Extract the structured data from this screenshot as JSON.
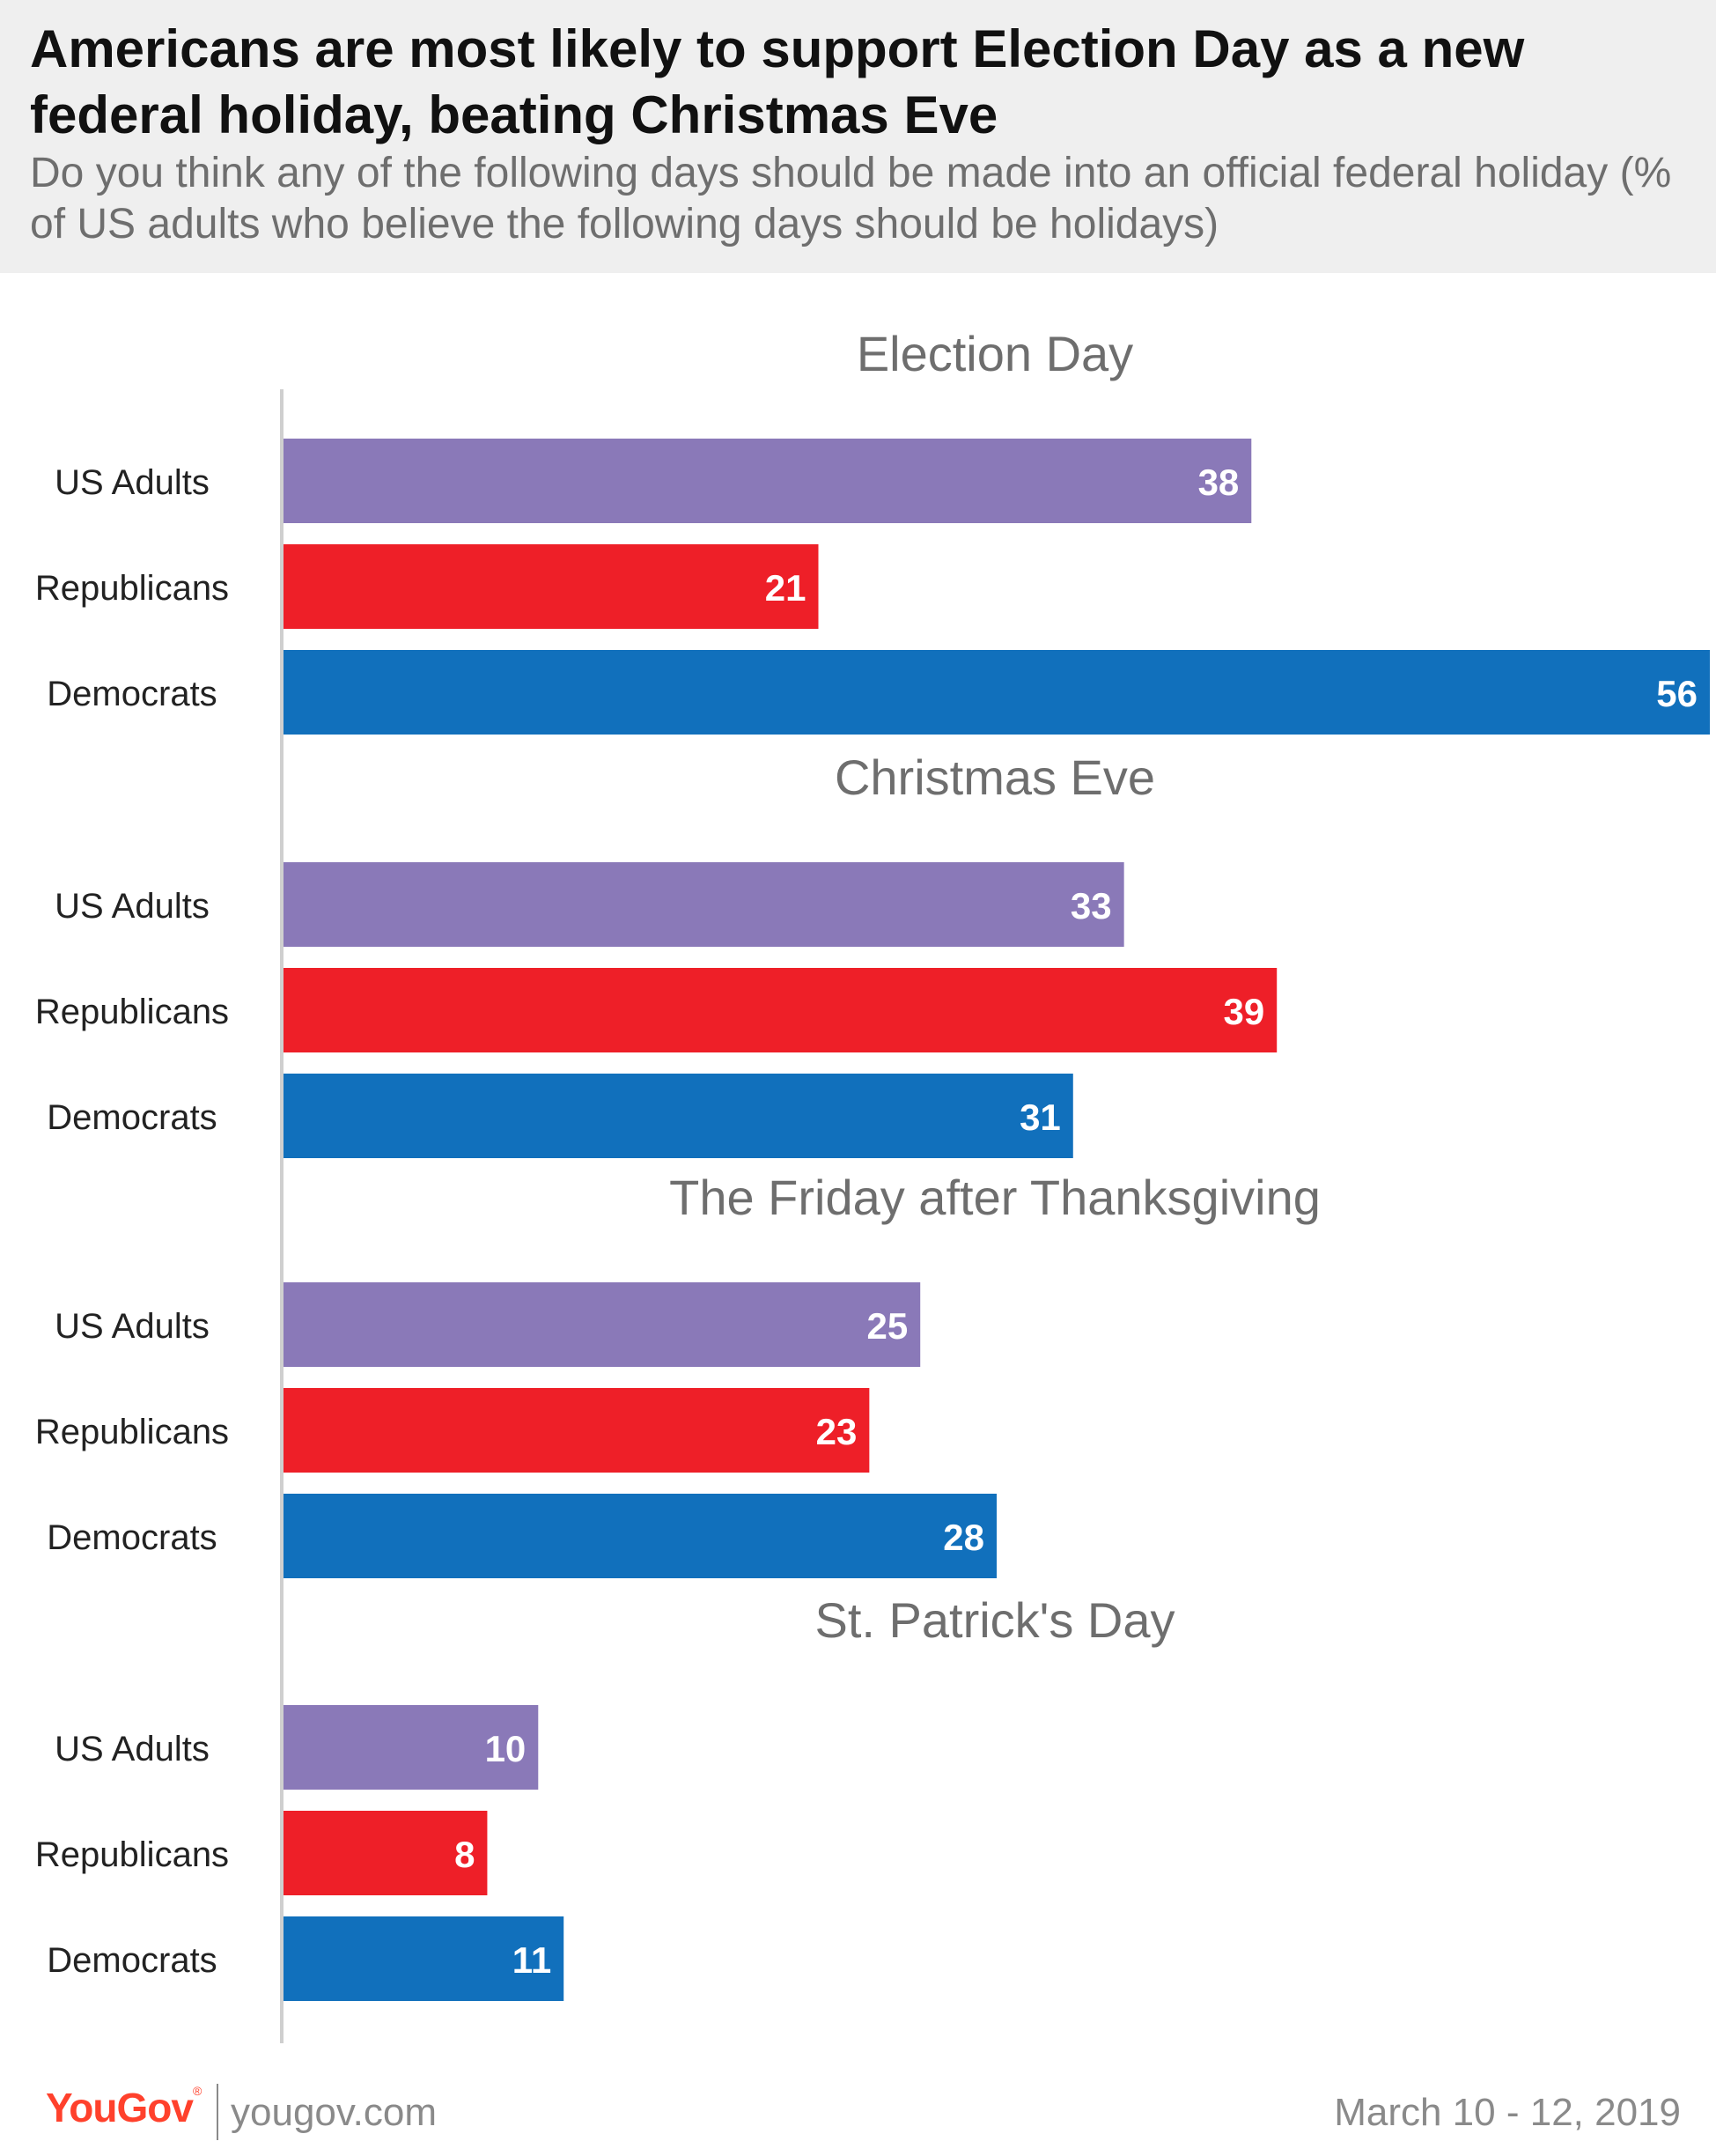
{
  "title": "Americans are most likely to support Election Day as a new federal holiday, beating Christmas Eve",
  "subtitle": "Do you think any of the following days should be made into an official federal holiday (% of US adults who believe the following days should be holidays)",
  "footer": {
    "brand": "YouGov",
    "url": "yougov.com",
    "date": "March 10 - 12, 2019"
  },
  "colors": {
    "us_adults": "#8a79b8",
    "republicans": "#ee1f28",
    "democrats": "#1170bc",
    "axis": "#cfcfcf",
    "panel_title": "#6e6e6e",
    "label": "#222222"
  },
  "chart_data": {
    "type": "bar",
    "orientation": "horizontal",
    "xlim": [
      0,
      56
    ],
    "series_names": [
      "US Adults",
      "Republicans",
      "Democrats"
    ],
    "panels": [
      {
        "title": "Election Day",
        "values": [
          38,
          21,
          56
        ]
      },
      {
        "title": "Christmas Eve",
        "values": [
          33,
          39,
          31
        ]
      },
      {
        "title": "The Friday after Thanksgiving",
        "values": [
          25,
          23,
          28
        ]
      },
      {
        "title": "St. Patrick's Day",
        "values": [
          10,
          8,
          11
        ]
      }
    ]
  }
}
